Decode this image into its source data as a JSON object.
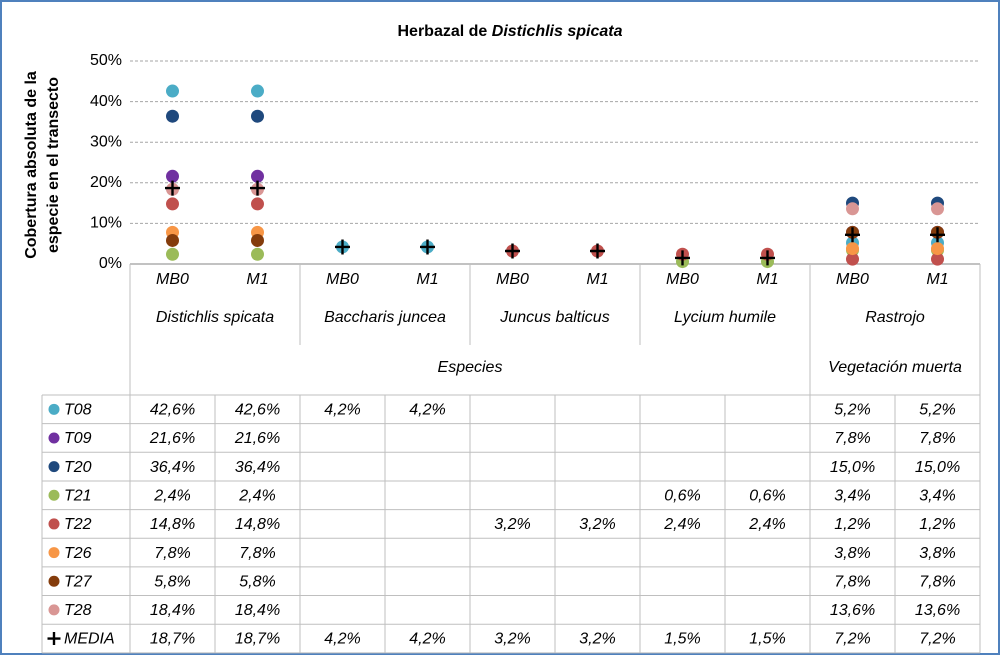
{
  "chart_data": {
    "type": "scatter",
    "title": {
      "text": "Herbazal de",
      "species": "Distichlis spicata"
    },
    "y_label": [
      "Cobertura absoluta de la",
      "especie en el transecto"
    ],
    "categories": [
      "MB0",
      "M1",
      "MB0",
      "M1",
      "MB0",
      "M1",
      "MB0",
      "M1",
      "MB0",
      "M1"
    ],
    "groups": [
      "Distichlis spicata",
      null,
      "Baccharis juncea",
      null,
      "Juncus balticus",
      null,
      "Lycium humile",
      null,
      "Rastrojo",
      null
    ],
    "supergroups": [
      "Especies",
      null,
      null,
      null,
      null,
      null,
      null,
      null,
      "Vegetación muerta",
      null
    ],
    "ylim": [
      0,
      50
    ],
    "yticks": [
      {
        "value": 0,
        "label": "0%"
      },
      {
        "value": 10,
        "label": "10%"
      },
      {
        "value": 20,
        "label": "20%"
      },
      {
        "value": 30,
        "label": "30%"
      },
      {
        "value": 40,
        "label": "40%"
      },
      {
        "value": 50,
        "label": "50%"
      }
    ],
    "grid": true,
    "series": [
      {
        "name": "T08",
        "color": "#4bacc6",
        "marker": "circle",
        "values": [
          42.6,
          42.6,
          4.2,
          4.2,
          null,
          null,
          null,
          null,
          5.2,
          5.2
        ],
        "value_labels": [
          "42,6%",
          "42,6%",
          "4,2%",
          "4,2%",
          null,
          null,
          null,
          null,
          "5,2%",
          "5,2%"
        ]
      },
      {
        "name": "T09",
        "color": "#7030a0",
        "marker": "circle",
        "values": [
          21.6,
          21.6,
          null,
          null,
          null,
          null,
          null,
          null,
          7.8,
          7.8
        ],
        "value_labels": [
          "21,6%",
          "21,6%",
          null,
          null,
          null,
          null,
          null,
          null,
          "7,8%",
          "7,8%"
        ]
      },
      {
        "name": "T20",
        "color": "#1f497d",
        "marker": "circle",
        "values": [
          36.4,
          36.4,
          null,
          null,
          null,
          null,
          null,
          null,
          15.0,
          15.0
        ],
        "value_labels": [
          "36,4%",
          "36,4%",
          null,
          null,
          null,
          null,
          null,
          null,
          "15,0%",
          "15,0%"
        ]
      },
      {
        "name": "T21",
        "color": "#9bbb59",
        "marker": "circle",
        "values": [
          2.4,
          2.4,
          null,
          null,
          null,
          null,
          0.6,
          0.6,
          3.4,
          3.4
        ],
        "value_labels": [
          "2,4%",
          "2,4%",
          null,
          null,
          null,
          null,
          "0,6%",
          "0,6%",
          "3,4%",
          "3,4%"
        ]
      },
      {
        "name": "T22",
        "color": "#c0504d",
        "marker": "circle",
        "values": [
          14.8,
          14.8,
          null,
          null,
          3.2,
          3.2,
          2.4,
          2.4,
          1.2,
          1.2
        ],
        "value_labels": [
          "14,8%",
          "14,8%",
          null,
          null,
          "3,2%",
          "3,2%",
          "2,4%",
          "2,4%",
          "1,2%",
          "1,2%"
        ]
      },
      {
        "name": "T26",
        "color": "#f79646",
        "marker": "circle",
        "values": [
          7.8,
          7.8,
          null,
          null,
          null,
          null,
          null,
          null,
          3.8,
          3.8
        ],
        "value_labels": [
          "7,8%",
          "7,8%",
          null,
          null,
          null,
          null,
          null,
          null,
          "3,8%",
          "3,8%"
        ]
      },
      {
        "name": "T27",
        "color": "#843c0c",
        "marker": "circle",
        "values": [
          5.8,
          5.8,
          null,
          null,
          null,
          null,
          null,
          null,
          7.8,
          7.8
        ],
        "value_labels": [
          "5,8%",
          "5,8%",
          null,
          null,
          null,
          null,
          null,
          null,
          "7,8%",
          "7,8%"
        ]
      },
      {
        "name": "T28",
        "color": "#d99694",
        "marker": "circle",
        "values": [
          18.4,
          18.4,
          null,
          null,
          null,
          null,
          null,
          null,
          13.6,
          13.6
        ],
        "value_labels": [
          "18,4%",
          "18,4%",
          null,
          null,
          null,
          null,
          null,
          null,
          "13,6%",
          "13,6%"
        ]
      },
      {
        "name": "MEDIA",
        "color": "#000000",
        "marker": "plus",
        "values": [
          18.7,
          18.7,
          4.2,
          4.2,
          3.2,
          3.2,
          1.5,
          1.5,
          7.2,
          7.2
        ],
        "value_labels": [
          "18,7%",
          "18,7%",
          "4,2%",
          "4,2%",
          "3,2%",
          "3,2%",
          "1,5%",
          "1,5%",
          "7,2%",
          "7,2%"
        ]
      }
    ]
  }
}
